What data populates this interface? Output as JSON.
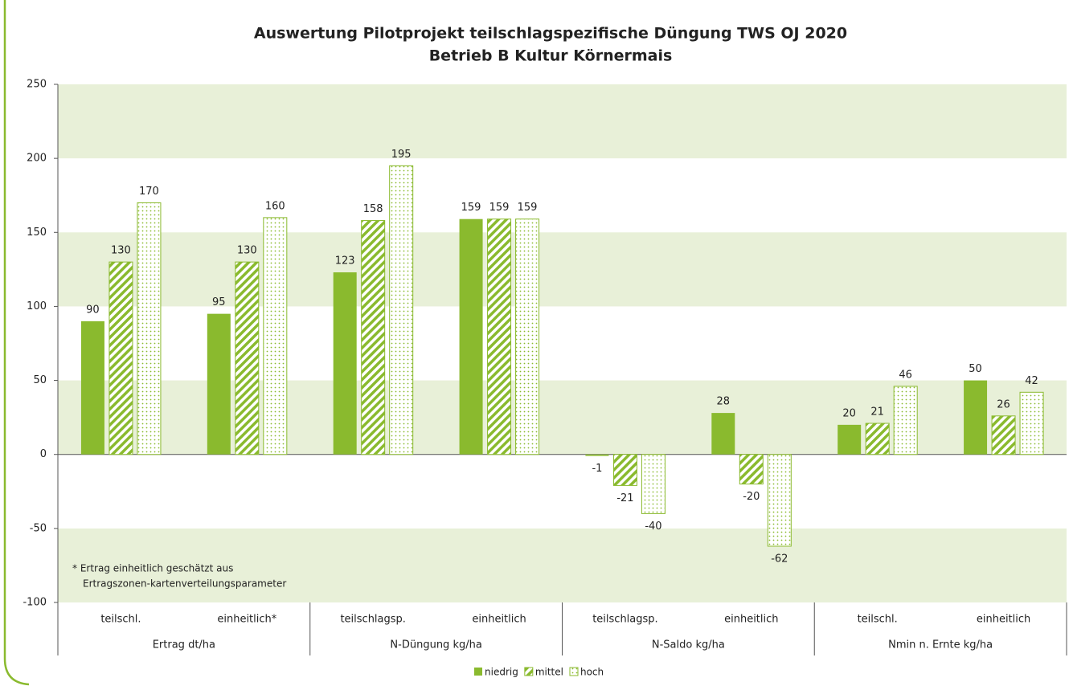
{
  "chart_data": {
    "type": "bar",
    "title": [
      "Auswertung Pilotprojekt teilschlagspezifische Düngung TWS OJ 2020",
      "Betrieb B Kultur Körnermais"
    ],
    "categories": [
      "teilschl.",
      "einheitlich*",
      "teilschlagsp.",
      "einheitlich",
      "teilschlagsp.",
      "einheitlich",
      "teilschl.",
      "einheitlich"
    ],
    "groups": [
      "Ertrag dt/ha",
      "N-Düngung kg/ha",
      "N-Saldo kg/ha",
      "Nmin n. Ernte kg/ha"
    ],
    "series": [
      {
        "name": "niedrig",
        "color": "#8aba2e",
        "fill": "solid",
        "values": [
          90,
          95,
          123,
          159,
          -1,
          28,
          20,
          50
        ]
      },
      {
        "name": "mittel",
        "color": "#8aba2e",
        "fill": "hatch",
        "values": [
          130,
          130,
          158,
          159,
          -21,
          -20,
          21,
          26
        ]
      },
      {
        "name": "hoch",
        "color": "#8aba2e",
        "fill": "dots",
        "values": [
          170,
          160,
          195,
          159,
          -40,
          -62,
          46,
          42
        ]
      }
    ],
    "ylim": [
      -100,
      250
    ],
    "yticks": [
      -100,
      -50,
      0,
      50,
      100,
      150,
      200,
      250
    ],
    "band_color": "#e8f0d8",
    "annotation": [
      "*  Ertrag einheitlich geschätzt aus",
      "Ertragszonen-kartenverteilungsparameter"
    ],
    "legend": "bottom"
  }
}
